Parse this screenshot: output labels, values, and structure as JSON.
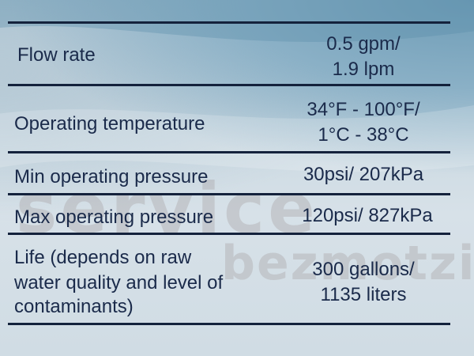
{
  "specs": {
    "flow_rate": {
      "label": "Flow rate",
      "value_line1": "0.5 gpm/",
      "value_line2": "1.9 lpm"
    },
    "operating_temperature": {
      "label": "Operating temperature",
      "value_line1": "34°F - 100°F/",
      "value_line2": "1°C - 38°C"
    },
    "min_pressure": {
      "label": "Min operating pressure",
      "value": "30psi/ 207kPa"
    },
    "max_pressure": {
      "label": "Max operating pressure",
      "value": "120psi/ 827kPa"
    },
    "life": {
      "label_line1": "Life (depends on raw",
      "label_line2": "water quality and level of",
      "label_line3": "contaminants)",
      "value_line1": "300 gallons/",
      "value_line2": "1135 liters"
    }
  },
  "watermark": {
    "line1": "service",
    "line2": "bezmotzis"
  },
  "colors": {
    "text": "#1a2a4a",
    "rule": "#14223c",
    "background_top": "#8ab0c6",
    "background_bottom": "#d0dce4"
  }
}
